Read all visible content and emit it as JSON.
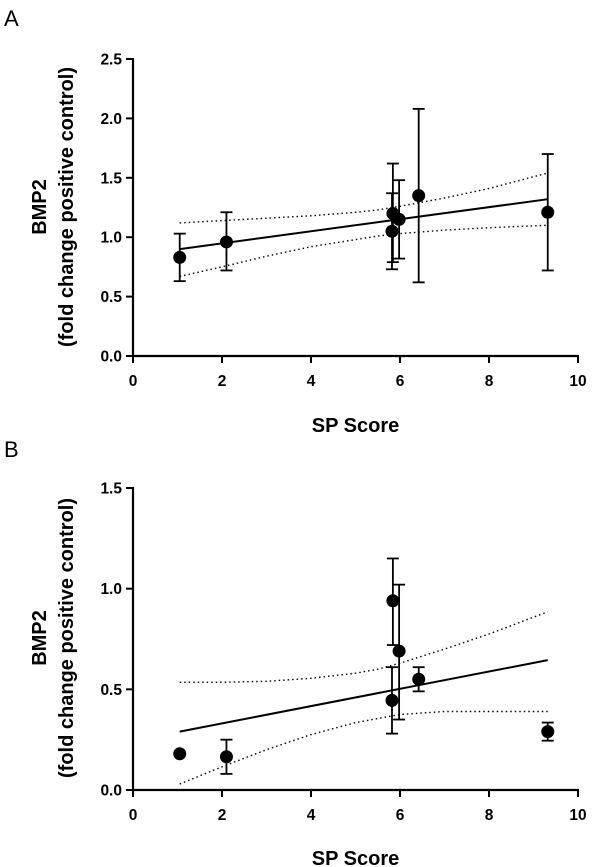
{
  "chart_data": [
    {
      "type": "scatter",
      "panel_label": "A",
      "xlabel": "SP Score",
      "ylabel": [
        "BMP2",
        "(fold change positive control)"
      ],
      "xlim": [
        0,
        10
      ],
      "ylim": [
        0,
        2.5
      ],
      "xticks": [
        "0",
        "2",
        "4",
        "6",
        "8",
        "10"
      ],
      "yticks": [
        "0.0",
        "0.5",
        "1.0",
        "1.5",
        "2.0",
        "2.5"
      ],
      "grid": false,
      "legend": "none",
      "points": [
        {
          "x": 1.05,
          "y": 0.83,
          "err_low": 0.63,
          "err_high": 1.03
        },
        {
          "x": 2.1,
          "y": 0.96,
          "err_low": 0.72,
          "err_high": 1.21
        },
        {
          "x": 5.82,
          "y": 1.05,
          "err_low": 0.73,
          "err_high": 1.37
        },
        {
          "x": 5.84,
          "y": 1.2,
          "err_low": 0.79,
          "err_high": 1.62
        },
        {
          "x": 5.98,
          "y": 1.15,
          "err_low": 0.82,
          "err_high": 1.48
        },
        {
          "x": 6.42,
          "y": 1.35,
          "err_low": 0.62,
          "err_high": 2.08
        },
        {
          "x": 9.32,
          "y": 1.21,
          "err_low": 0.72,
          "err_high": 1.7
        }
      ],
      "regression": {
        "x": [
          1.05,
          9.32
        ],
        "y": [
          0.9,
          1.32
        ]
      },
      "ci_upper": {
        "x": [
          1.05,
          2,
          3,
          4,
          5,
          5.5,
          6,
          7,
          8,
          9.32
        ],
        "y": [
          1.12,
          1.14,
          1.16,
          1.18,
          1.21,
          1.23,
          1.26,
          1.33,
          1.41,
          1.54
        ]
      },
      "ci_lower": {
        "x": [
          1.05,
          2,
          3,
          4,
          5,
          5.5,
          6,
          7,
          8,
          9.32
        ],
        "y": [
          0.67,
          0.75,
          0.84,
          0.92,
          0.98,
          1.01,
          1.03,
          1.06,
          1.08,
          1.1
        ]
      }
    },
    {
      "type": "scatter",
      "panel_label": "B",
      "xlabel": "SP Score",
      "ylabel": [
        "BMP2",
        "(fold change positive control)"
      ],
      "xlim": [
        0,
        10
      ],
      "ylim": [
        0,
        1.5
      ],
      "xticks": [
        "0",
        "2",
        "4",
        "6",
        "8",
        "10"
      ],
      "yticks": [
        "0.0",
        "0.5",
        "1.0",
        "1.5"
      ],
      "grid": false,
      "legend": "none",
      "points": [
        {
          "x": 1.05,
          "y": 0.18,
          "err_low": null,
          "err_high": null
        },
        {
          "x": 2.1,
          "y": 0.165,
          "err_low": 0.08,
          "err_high": 0.25
        },
        {
          "x": 5.82,
          "y": 0.445,
          "err_low": 0.28,
          "err_high": 0.61
        },
        {
          "x": 5.84,
          "y": 0.94,
          "err_low": 0.72,
          "err_high": 1.15
        },
        {
          "x": 5.98,
          "y": 0.69,
          "err_low": 0.35,
          "err_high": 1.02
        },
        {
          "x": 6.42,
          "y": 0.55,
          "err_low": 0.49,
          "err_high": 0.61
        },
        {
          "x": 9.32,
          "y": 0.29,
          "err_low": 0.245,
          "err_high": 0.335
        }
      ],
      "regression": {
        "x": [
          1.05,
          9.32
        ],
        "y": [
          0.29,
          0.645
        ]
      },
      "ci_upper": {
        "x": [
          1.05,
          2,
          3,
          4,
          5,
          5.5,
          6,
          7,
          8,
          9.32
        ],
        "y": [
          0.535,
          0.535,
          0.54,
          0.555,
          0.58,
          0.6,
          0.63,
          0.7,
          0.775,
          0.885
        ]
      },
      "ci_lower": {
        "x": [
          1.05,
          2,
          3,
          4,
          5,
          5.5,
          6,
          7,
          8,
          9.32
        ],
        "y": [
          0.03,
          0.115,
          0.2,
          0.275,
          0.335,
          0.355,
          0.375,
          0.39,
          0.39,
          0.39
        ]
      }
    }
  ]
}
